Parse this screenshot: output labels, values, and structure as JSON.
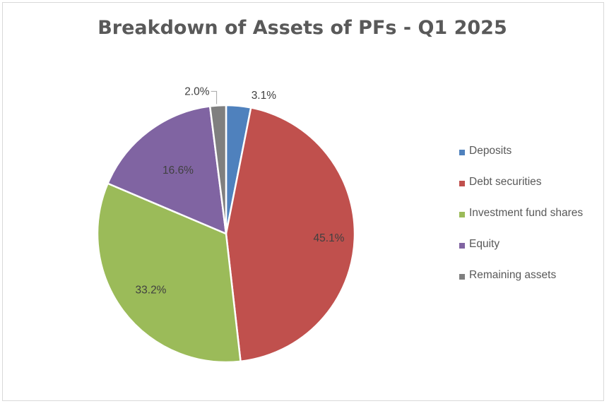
{
  "chart_data": {
    "type": "pie",
    "title": "Breakdown of Assets of PFs - Q1 2025",
    "categories": [
      "Deposits",
      "Debt securities",
      "Investment fund shares",
      "Equity",
      "Remaining assets"
    ],
    "values": [
      3.1,
      45.1,
      33.2,
      16.6,
      2.0
    ],
    "data_labels": [
      "3.1%",
      "45.1%",
      "33.2%",
      "16.6%",
      "2.0%"
    ],
    "colors": [
      "#4f81bd",
      "#c0504d",
      "#9bbb59",
      "#8064a2",
      "#7f7f7f"
    ],
    "legend_position": "right"
  }
}
